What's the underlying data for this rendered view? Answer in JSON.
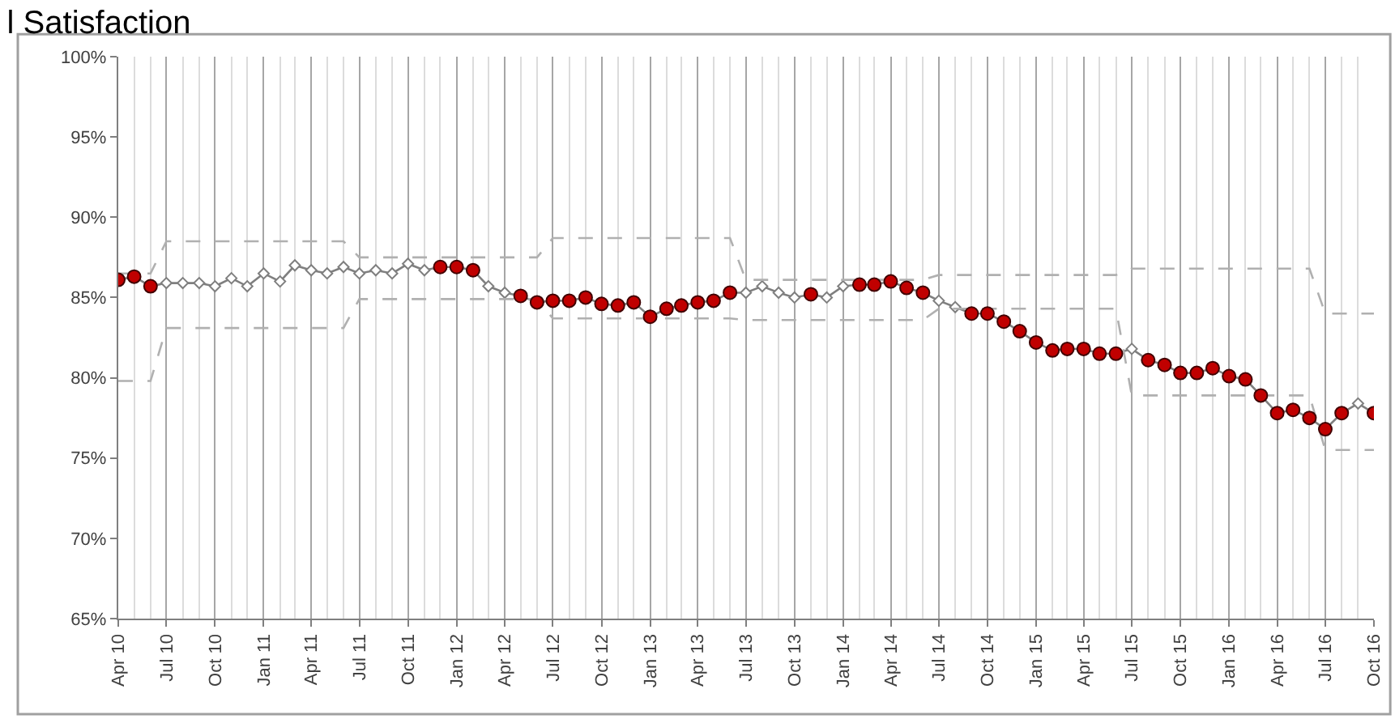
{
  "chart_data": {
    "type": "line",
    "title": "l Satisfaction",
    "x": [
      "2010-04",
      "2010-05",
      "2010-06",
      "2010-07",
      "2010-08",
      "2010-09",
      "2010-10",
      "2010-11",
      "2010-12",
      "2011-01",
      "2011-02",
      "2011-03",
      "2011-04",
      "2011-05",
      "2011-06",
      "2011-07",
      "2011-08",
      "2011-09",
      "2011-10",
      "2011-11",
      "2011-12",
      "2012-01",
      "2012-02",
      "2012-03",
      "2012-04",
      "2012-05",
      "2012-06",
      "2012-07",
      "2012-08",
      "2012-09",
      "2012-10",
      "2012-11",
      "2012-12",
      "2013-01",
      "2013-02",
      "2013-03",
      "2013-04",
      "2013-05",
      "2013-06",
      "2013-07",
      "2013-08",
      "2013-09",
      "2013-10",
      "2013-11",
      "2013-12",
      "2014-01",
      "2014-02",
      "2014-03",
      "2014-04",
      "2014-05",
      "2014-06",
      "2014-07",
      "2014-08",
      "2014-09",
      "2014-10",
      "2014-11",
      "2014-12",
      "2015-01",
      "2015-02",
      "2015-03",
      "2015-04",
      "2015-05",
      "2015-06",
      "2015-07",
      "2015-08",
      "2015-09",
      "2015-10",
      "2015-11",
      "2015-12",
      "2016-01",
      "2016-02",
      "2016-03",
      "2016-04",
      "2016-05",
      "2016-06",
      "2016-07",
      "2016-08",
      "2016-09",
      "2016-10"
    ],
    "series": [
      {
        "type": "line",
        "color": "#7f7f7f",
        "marker": "diamond",
        "values": [
          86.1,
          86.3,
          85.7,
          85.9,
          85.9,
          85.9,
          85.7,
          86.2,
          85.7,
          86.5,
          86.0,
          87.0,
          86.7,
          86.5,
          86.9,
          86.5,
          86.7,
          86.5,
          87.1,
          86.7,
          86.9,
          86.9,
          86.7,
          85.7,
          85.3,
          85.1,
          84.7,
          84.8,
          84.8,
          85.0,
          84.6,
          84.5,
          84.7,
          83.8,
          84.3,
          84.5,
          84.7,
          84.8,
          85.3,
          85.3,
          85.7,
          85.3,
          85.0,
          85.2,
          85.0,
          85.7,
          85.8,
          85.8,
          86.0,
          85.6,
          85.3,
          84.8,
          84.4,
          84.0,
          84.0,
          83.5,
          82.9,
          82.2,
          81.7,
          81.8,
          81.8,
          81.5,
          81.5,
          81.8,
          81.1,
          80.8,
          80.3,
          80.3,
          80.6,
          80.1,
          79.9,
          78.9,
          77.8,
          78.0,
          77.5,
          76.8,
          77.8,
          78.4,
          77.8
        ]
      },
      {
        "type": "scatter",
        "color": "#c00000",
        "marker": "circle",
        "values": [
          86.1,
          86.3,
          85.7,
          null,
          null,
          null,
          null,
          null,
          null,
          null,
          null,
          null,
          null,
          null,
          null,
          null,
          null,
          null,
          null,
          null,
          86.9,
          86.9,
          86.7,
          null,
          null,
          85.1,
          84.7,
          84.8,
          84.8,
          85.0,
          84.6,
          84.5,
          84.7,
          83.8,
          84.3,
          84.5,
          84.7,
          84.8,
          85.3,
          null,
          null,
          null,
          null,
          85.2,
          null,
          null,
          85.8,
          85.8,
          86.0,
          85.6,
          85.3,
          null,
          null,
          84.0,
          84.0,
          83.5,
          82.9,
          82.2,
          81.7,
          81.8,
          81.8,
          81.5,
          81.5,
          null,
          81.1,
          80.8,
          80.3,
          80.3,
          80.6,
          80.1,
          79.9,
          78.9,
          77.8,
          78.0,
          77.5,
          76.8,
          77.8,
          null,
          77.8
        ]
      },
      {
        "type": "line",
        "color": "#b0b0b0",
        "marker": "none",
        "line_style": "dashed",
        "x": [
          "2010-04",
          "2010-06",
          "2010-07",
          "2011-06",
          "2011-07",
          "2012-06",
          "2012-07",
          "2013-06",
          "2013-07",
          "2014-06",
          "2014-07",
          "2015-06",
          "2015-07",
          "2016-06",
          "2016-07",
          "2016-10"
        ],
        "values": [
          86.5,
          86.5,
          88.5,
          88.5,
          87.5,
          87.5,
          88.7,
          88.7,
          86.1,
          86.1,
          86.4,
          86.4,
          86.8,
          86.8,
          84.0,
          84.0
        ]
      },
      {
        "type": "line",
        "color": "#b0b0b0",
        "marker": "none",
        "line_style": "dashed",
        "x": [
          "2010-04",
          "2010-06",
          "2010-07",
          "2011-06",
          "2011-07",
          "2012-06",
          "2012-07",
          "2013-06",
          "2013-07",
          "2014-06",
          "2014-07",
          "2015-06",
          "2015-07",
          "2016-06",
          "2016-07",
          "2016-10"
        ],
        "values": [
          79.8,
          79.8,
          83.1,
          83.1,
          84.9,
          84.9,
          83.7,
          83.7,
          83.6,
          83.6,
          84.3,
          84.3,
          78.9,
          78.9,
          75.5,
          75.5
        ]
      }
    ],
    "xlim": [
      "2010-04",
      "2016-10"
    ],
    "xticks": [
      {
        "value": "2010-04",
        "label": "Apr 10"
      },
      {
        "value": "2010-07",
        "label": "Jul 10"
      },
      {
        "value": "2010-10",
        "label": "Oct 10"
      },
      {
        "value": "2011-01",
        "label": "Jan 11"
      },
      {
        "value": "2011-04",
        "label": "Apr 11"
      },
      {
        "value": "2011-07",
        "label": "Jul 11"
      },
      {
        "value": "2011-10",
        "label": "Oct 11"
      },
      {
        "value": "2012-01",
        "label": "Jan 12"
      },
      {
        "value": "2012-04",
        "label": "Apr 12"
      },
      {
        "value": "2012-07",
        "label": "Jul 12"
      },
      {
        "value": "2012-10",
        "label": "Oct 12"
      },
      {
        "value": "2013-01",
        "label": "Jan 13"
      },
      {
        "value": "2013-04",
        "label": "Apr 13"
      },
      {
        "value": "2013-07",
        "label": "Jul 13"
      },
      {
        "value": "2013-10",
        "label": "Oct 13"
      },
      {
        "value": "2014-01",
        "label": "Jan 14"
      },
      {
        "value": "2014-04",
        "label": "Apr 14"
      },
      {
        "value": "2014-07",
        "label": "Jul 14"
      },
      {
        "value": "2014-10",
        "label": "Oct 14"
      },
      {
        "value": "2015-01",
        "label": "Jan 15"
      },
      {
        "value": "2015-04",
        "label": "Apr 15"
      },
      {
        "value": "2015-07",
        "label": "Jul 15"
      },
      {
        "value": "2015-10",
        "label": "Oct 15"
      },
      {
        "value": "2016-01",
        "label": "Jan 16"
      },
      {
        "value": "2016-04",
        "label": "Apr 16"
      },
      {
        "value": "2016-07",
        "label": "Jul 16"
      },
      {
        "value": "2016-10",
        "label": "Oct 16"
      }
    ],
    "ylim": [
      65,
      100
    ],
    "yticks": [
      {
        "value": 65,
        "label": "65%"
      },
      {
        "value": 70,
        "label": "70%"
      },
      {
        "value": 75,
        "label": "75%"
      },
      {
        "value": 80,
        "label": "80%"
      },
      {
        "value": 85,
        "label": "85%"
      },
      {
        "value": 90,
        "label": "90%"
      },
      {
        "value": 95,
        "label": "95%"
      },
      {
        "value": 100,
        "label": "100%"
      }
    ],
    "grid": "x",
    "legend": false
  }
}
